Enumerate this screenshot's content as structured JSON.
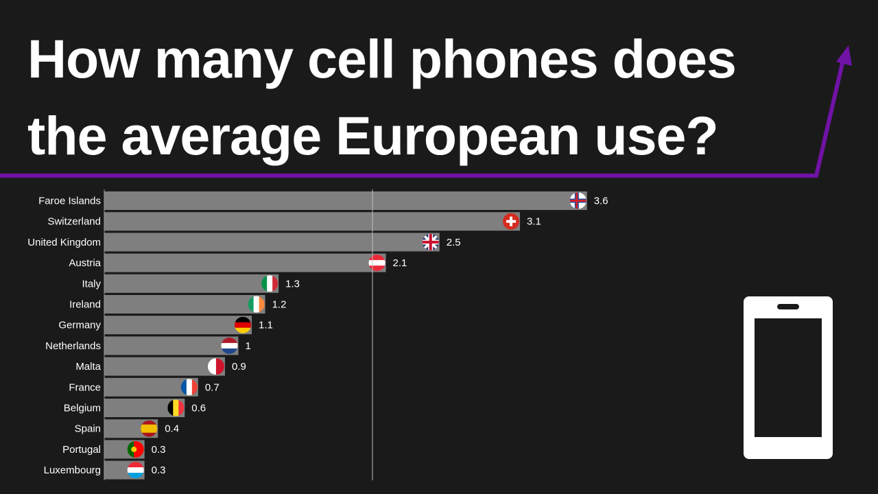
{
  "title": {
    "line1": "How many cell phones does",
    "line2": "the average European use?"
  },
  "accent_color": "#7012a6",
  "icons": [
    "arrow-up-right-icon",
    "phone-icon"
  ],
  "chart_data": {
    "type": "bar",
    "orientation": "horizontal",
    "categories": [
      "Faroe Islands",
      "Switzerland",
      "United Kingdom",
      "Austria",
      "Italy",
      "Ireland",
      "Germany",
      "Netherlands",
      "Malta",
      "France",
      "Belgium",
      "Spain",
      "Portugal",
      "Luxembourg"
    ],
    "values": [
      3.6,
      3.1,
      2.5,
      2.1,
      1.3,
      1.2,
      1.1,
      1,
      0.9,
      0.7,
      0.6,
      0.4,
      0.3,
      0.3
    ],
    "value_labels": [
      "3.6",
      "3.1",
      "2.5",
      "2.1",
      "1.3",
      "1.2",
      "1.1",
      "1",
      "0.9",
      "0.7",
      "0.6",
      "0.4",
      "0.3",
      "0.3"
    ],
    "reference_line": 2,
    "xlim": [
      0,
      4
    ],
    "bar_color": "#7f7f7f",
    "grid": false,
    "legend": "none",
    "flags": [
      {
        "dir": "cross",
        "colors": [
          "#ffffff",
          "#1c4fa0",
          "#d0202a"
        ]
      },
      {
        "dir": "swiss",
        "colors": [
          "#d52b1e",
          "#ffffff"
        ]
      },
      {
        "dir": "uk",
        "colors": [
          "#1a2a6c",
          "#ffffff",
          "#c8102e"
        ]
      },
      {
        "dir": "h",
        "colors": [
          "#ed2939",
          "#ffffff",
          "#ed2939"
        ]
      },
      {
        "dir": "v",
        "colors": [
          "#009246",
          "#ffffff",
          "#ce2b37"
        ]
      },
      {
        "dir": "v",
        "colors": [
          "#169b62",
          "#ffffff",
          "#ff883e"
        ]
      },
      {
        "dir": "h",
        "colors": [
          "#000000",
          "#dd0000",
          "#ffce00"
        ]
      },
      {
        "dir": "h",
        "colors": [
          "#ae1c28",
          "#ffffff",
          "#21468b"
        ]
      },
      {
        "dir": "v2",
        "colors": [
          "#ffffff",
          "#cf142b"
        ]
      },
      {
        "dir": "v",
        "colors": [
          "#0055a4",
          "#ffffff",
          "#ef4135"
        ]
      },
      {
        "dir": "v",
        "colors": [
          "#000000",
          "#fdda24",
          "#ef3340"
        ]
      },
      {
        "dir": "h4",
        "colors": [
          "#aa151b",
          "#f1bf00",
          "#aa151b"
        ]
      },
      {
        "dir": "v25",
        "colors": [
          "#006600",
          "#ff0000"
        ]
      },
      {
        "dir": "h",
        "colors": [
          "#ed2939",
          "#ffffff",
          "#00a1de"
        ]
      }
    ]
  }
}
